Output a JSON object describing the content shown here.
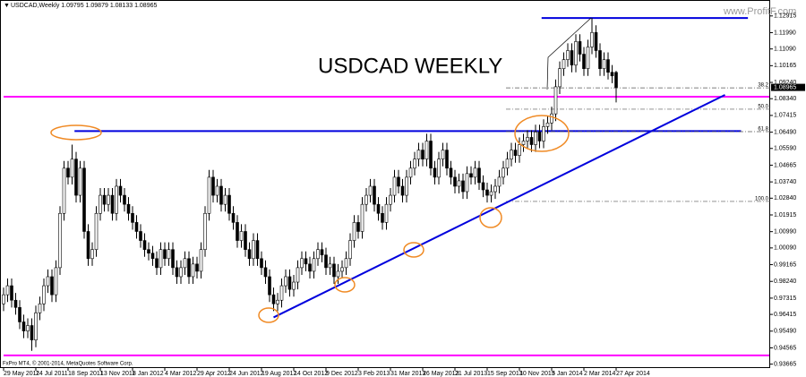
{
  "chart_data": {
    "type": "candlestick",
    "symbol": "USDCAD,Weekly",
    "title": "USDCAD  WEEKLY",
    "watermark": "www.ProfitF.com",
    "copyright": "FxPro MT4, © 2001-2014, MetaQuotes Software Corp.",
    "up_color": "#ffffff",
    "down_color": "#000000",
    "ylim": [
      0.934,
      1.134
    ],
    "yticks": [
      0.93665,
      0.94565,
      {
        "value": 0.9549,
        "label": "0.95490"
      },
      0.96415,
      0.97315,
      {
        "value": 0.9824,
        "label": "0.98240"
      },
      0.99165,
      {
        "value": 1.0009,
        "label": "1.00090"
      },
      {
        "value": 1.0099,
        "label": "1.00990"
      },
      1.01915,
      {
        "value": 1.0284,
        "label": "1.02840"
      },
      {
        "value": 1.0374,
        "label": "1.03740"
      },
      1.04665,
      {
        "value": 1.0559,
        "label": "1.05590"
      },
      {
        "value": 1.0649,
        "label": "1.06490"
      },
      1.07415,
      {
        "value": 1.0834,
        "label": "1.08340"
      },
      {
        "value": 1.0924,
        "label": "1.09240"
      },
      1.10165,
      {
        "value": 1.1109,
        "label": "1.11090"
      },
      {
        "value": 1.1199,
        "label": "1.11990"
      },
      1.12915
    ],
    "xtick_labels": [
      "29 May 2011",
      "24 Jul 2011",
      "18 Sep 2011",
      "13 Nov 2011",
      "8 Jan 2012",
      "4 Mar 2012",
      "29 Apr 2012",
      "24 Jun 2012",
      "19 Aug 2012",
      "14 Oct 2012",
      "9 Dec 2012",
      "3 Feb 2013",
      "31 Mar 2013",
      "26 May 2013",
      "21 Jul 2013",
      "15 Sep 2013",
      "10 Nov 2013",
      "5 Jan 2014",
      "2 Mar 2014",
      "27 Apr 2014"
    ],
    "horizontal_lines": [
      {
        "price": 1.0845,
        "from": 0,
        "to": 190,
        "color": "#ff00ff"
      },
      {
        "price": 0.9415,
        "from": 0,
        "to": 190,
        "color": "#ff00ff"
      },
      {
        "price": 1.0655,
        "from": 17.6,
        "to": 183,
        "color": "#0000dd"
      },
      {
        "price": 1.128,
        "from": 133.5,
        "to": 184.7,
        "color": "#0000dd"
      }
    ],
    "trendline": {
      "from": [
        67,
        0.9625
      ],
      "to": [
        179,
        1.0855
      ],
      "color": "#0000dd"
    },
    "fibo_levels": [
      {
        "label": "38.2",
        "price": 1.0894
      },
      {
        "label": "50.0",
        "price": 1.0776
      },
      {
        "label": "61.8",
        "price": 1.0652
      },
      {
        "label": "100.0",
        "price": 1.0266
      }
    ],
    "candles": [
      [
        0.97,
        0.979,
        0.966,
        0.975
      ],
      [
        0.975,
        0.984,
        0.971,
        0.98
      ],
      [
        0.98,
        0.984,
        0.968,
        0.972
      ],
      [
        0.972,
        0.976,
        0.964,
        0.968
      ],
      [
        0.968,
        0.972,
        0.956,
        0.96
      ],
      [
        0.96,
        0.964,
        0.951,
        0.955
      ],
      [
        0.955,
        0.962,
        0.951,
        0.958
      ],
      [
        0.958,
        0.962,
        0.944,
        0.95
      ],
      [
        0.95,
        0.969,
        0.946,
        0.965
      ],
      [
        0.965,
        0.974,
        0.961,
        0.97
      ],
      [
        0.97,
        0.984,
        0.966,
        0.98
      ],
      [
        0.98,
        0.989,
        0.976,
        0.985
      ],
      [
        0.985,
        0.989,
        0.971,
        0.975
      ],
      [
        0.975,
        0.994,
        0.971,
        0.99
      ],
      [
        0.99,
        1.024,
        0.986,
        1.02
      ],
      [
        1.02,
        1.049,
        1.016,
        1.045
      ],
      [
        1.045,
        1.049,
        1.036,
        1.04
      ],
      [
        1.04,
        1.058,
        1.036,
        1.05
      ],
      [
        1.05,
        1.054,
        1.026,
        1.03
      ],
      [
        1.03,
        1.049,
        1.026,
        1.045
      ],
      [
        1.045,
        1.049,
        1.006,
        1.01
      ],
      [
        1.01,
        1.014,
        0.991,
        0.995
      ],
      [
        0.995,
        1.004,
        0.991,
        1.0
      ],
      [
        1.0,
        1.024,
        0.996,
        1.02
      ],
      [
        1.02,
        1.034,
        1.016,
        1.03
      ],
      [
        1.03,
        1.034,
        1.021,
        1.025
      ],
      [
        1.025,
        1.034,
        1.021,
        1.03
      ],
      [
        1.03,
        1.034,
        1.016,
        1.02
      ],
      [
        1.02,
        1.039,
        1.016,
        1.035
      ],
      [
        1.035,
        1.039,
        1.026,
        1.03
      ],
      [
        1.03,
        1.034,
        1.021,
        1.025
      ],
      [
        1.025,
        1.029,
        1.016,
        1.02
      ],
      [
        1.02,
        1.024,
        1.011,
        1.015
      ],
      [
        1.015,
        1.019,
        1.006,
        1.01
      ],
      [
        1.01,
        1.014,
        1.001,
        1.005
      ],
      [
        1.005,
        1.009,
        0.996,
        1.0
      ],
      [
        1.0,
        1.004,
        0.994,
        0.998
      ],
      [
        0.998,
        1.002,
        0.991,
        0.995
      ],
      [
        0.995,
        0.999,
        0.986,
        0.99
      ],
      [
        0.99,
        1.004,
        0.986,
        1.0
      ],
      [
        1.0,
        1.004,
        0.991,
        0.995
      ],
      [
        0.995,
        1.004,
        0.991,
        1.0
      ],
      [
        1.0,
        1.004,
        0.986,
        0.99
      ],
      [
        0.99,
        0.994,
        0.981,
        0.985
      ],
      [
        0.985,
        0.994,
        0.981,
        0.99
      ],
      [
        0.99,
        0.999,
        0.986,
        0.995
      ],
      [
        0.995,
        0.999,
        0.981,
        0.985
      ],
      [
        0.985,
        0.996,
        0.981,
        0.992
      ],
      [
        0.992,
        0.996,
        0.984,
        0.988
      ],
      [
        0.988,
        1.004,
        0.984,
        1.0
      ],
      [
        1.0,
        1.024,
        0.996,
        1.02
      ],
      [
        1.02,
        1.044,
        1.016,
        1.04
      ],
      [
        1.04,
        1.044,
        1.026,
        1.03
      ],
      [
        1.03,
        1.039,
        1.026,
        1.035
      ],
      [
        1.035,
        1.039,
        1.021,
        1.025
      ],
      [
        1.025,
        1.034,
        1.021,
        1.03
      ],
      [
        1.03,
        1.034,
        1.016,
        1.02
      ],
      [
        1.02,
        1.024,
        1.011,
        1.015
      ],
      [
        1.015,
        1.019,
        1.001,
        1.005
      ],
      [
        1.005,
        1.014,
        1.001,
        1.01
      ],
      [
        1.01,
        1.014,
        0.996,
        1.0
      ],
      [
        1.0,
        1.004,
        0.991,
        0.995
      ],
      [
        0.995,
        1.009,
        0.991,
        1.005
      ],
      [
        1.005,
        1.009,
        0.991,
        0.995
      ],
      [
        0.995,
        0.999,
        0.986,
        0.99
      ],
      [
        0.99,
        0.994,
        0.981,
        0.985
      ],
      [
        0.985,
        0.989,
        0.971,
        0.975
      ],
      [
        0.975,
        0.979,
        0.966,
        0.97
      ],
      [
        0.97,
        0.976,
        0.966,
        0.972
      ],
      [
        0.972,
        0.984,
        0.968,
        0.98
      ],
      [
        0.98,
        0.989,
        0.976,
        0.985
      ],
      [
        0.985,
        0.989,
        0.974,
        0.978
      ],
      [
        0.978,
        0.986,
        0.974,
        0.982
      ],
      [
        0.982,
        0.994,
        0.978,
        0.99
      ],
      [
        0.99,
        0.999,
        0.986,
        0.995
      ],
      [
        0.995,
        0.999,
        0.988,
        0.992
      ],
      [
        0.992,
        0.996,
        0.984,
        0.988
      ],
      [
        0.988,
        0.999,
        0.984,
        0.995
      ],
      [
        0.995,
        1.004,
        0.991,
        1.0
      ],
      [
        1.0,
        1.004,
        0.993,
        0.997
      ],
      [
        0.997,
        1.001,
        0.986,
        0.99
      ],
      [
        0.99,
        0.996,
        0.986,
        0.992
      ],
      [
        0.992,
        0.996,
        0.981,
        0.985
      ],
      [
        0.985,
        0.992,
        0.981,
        0.988
      ],
      [
        0.988,
        0.994,
        0.984,
        0.99
      ],
      [
        0.99,
        0.999,
        0.986,
        0.995
      ],
      [
        0.995,
        1.009,
        0.991,
        1.005
      ],
      [
        1.005,
        1.019,
        1.001,
        1.015
      ],
      [
        1.015,
        1.019,
        1.006,
        1.01
      ],
      [
        1.01,
        1.029,
        1.006,
        1.025
      ],
      [
        1.025,
        1.034,
        1.021,
        1.03
      ],
      [
        1.03,
        1.039,
        1.026,
        1.035
      ],
      [
        1.035,
        1.039,
        1.021,
        1.025
      ],
      [
        1.025,
        1.029,
        1.016,
        1.02
      ],
      [
        1.02,
        1.024,
        1.011,
        1.015
      ],
      [
        1.015,
        1.029,
        1.011,
        1.025
      ],
      [
        1.025,
        1.034,
        1.021,
        1.03
      ],
      [
        1.03,
        1.044,
        1.026,
        1.04
      ],
      [
        1.04,
        1.044,
        1.031,
        1.035
      ],
      [
        1.035,
        1.039,
        1.026,
        1.03
      ],
      [
        1.03,
        1.044,
        1.026,
        1.04
      ],
      [
        1.04,
        1.049,
        1.036,
        1.045
      ],
      [
        1.045,
        1.054,
        1.041,
        1.05
      ],
      [
        1.05,
        1.059,
        1.046,
        1.055
      ],
      [
        1.055,
        1.059,
        1.046,
        1.05
      ],
      [
        1.05,
        1.064,
        1.046,
        1.06
      ],
      [
        1.06,
        1.064,
        1.041,
        1.045
      ],
      [
        1.045,
        1.049,
        1.036,
        1.04
      ],
      [
        1.04,
        1.054,
        1.036,
        1.05
      ],
      [
        1.05,
        1.059,
        1.046,
        1.055
      ],
      [
        1.055,
        1.059,
        1.041,
        1.045
      ],
      [
        1.045,
        1.049,
        1.036,
        1.04
      ],
      [
        1.04,
        1.044,
        1.031,
        1.035
      ],
      [
        1.035,
        1.042,
        1.031,
        1.038
      ],
      [
        1.038,
        1.042,
        1.028,
        1.032
      ],
      [
        1.032,
        1.046,
        1.028,
        1.042
      ],
      [
        1.042,
        1.046,
        1.036,
        1.04
      ],
      [
        1.04,
        1.049,
        1.036,
        1.045
      ],
      [
        1.045,
        1.049,
        1.033,
        1.037
      ],
      [
        1.037,
        1.041,
        1.029,
        1.033
      ],
      [
        1.033,
        1.037,
        1.026,
        1.03
      ],
      [
        1.03,
        1.036,
        1.026,
        1.032
      ],
      [
        1.032,
        1.039,
        1.028,
        1.035
      ],
      [
        1.035,
        1.044,
        1.031,
        1.04
      ],
      [
        1.04,
        1.049,
        1.036,
        1.045
      ],
      [
        1.045,
        1.054,
        1.041,
        1.05
      ],
      [
        1.05,
        1.059,
        1.046,
        1.055
      ],
      [
        1.055,
        1.059,
        1.048,
        1.052
      ],
      [
        1.052,
        1.062,
        1.048,
        1.058
      ],
      [
        1.058,
        1.064,
        1.054,
        1.06
      ],
      [
        1.06,
        1.066,
        1.056,
        1.062
      ],
      [
        1.062,
        1.066,
        1.054,
        1.058
      ],
      [
        1.058,
        1.069,
        1.054,
        1.065
      ],
      [
        1.065,
        1.069,
        1.056,
        1.06
      ],
      [
        1.06,
        1.072,
        1.056,
        1.068
      ],
      [
        1.068,
        1.074,
        1.064,
        1.07
      ],
      [
        1.07,
        1.079,
        1.066,
        1.075
      ],
      [
        1.075,
        1.094,
        1.071,
        1.09
      ],
      [
        1.09,
        1.104,
        1.086,
        1.1
      ],
      [
        1.1,
        1.109,
        1.096,
        1.105
      ],
      [
        1.105,
        1.114,
        1.101,
        1.11
      ],
      [
        1.11,
        1.114,
        1.098,
        1.102
      ],
      [
        1.102,
        1.119,
        1.098,
        1.115
      ],
      [
        1.115,
        1.119,
        1.104,
        1.108
      ],
      [
        1.108,
        1.112,
        1.096,
        1.1
      ],
      [
        1.1,
        1.116,
        1.096,
        1.112
      ],
      [
        1.112,
        1.128,
        1.108,
        1.12
      ],
      [
        1.12,
        1.124,
        1.106,
        1.11
      ],
      [
        1.11,
        1.114,
        1.096,
        1.1
      ],
      [
        1.1,
        1.109,
        1.096,
        1.105
      ],
      [
        1.105,
        1.109,
        1.094,
        1.098
      ],
      [
        1.098,
        1.102,
        1.092,
        1.096
      ],
      [
        1.09795,
        1.09879,
        1.08133,
        1.08965
      ]
    ]
  }
}
